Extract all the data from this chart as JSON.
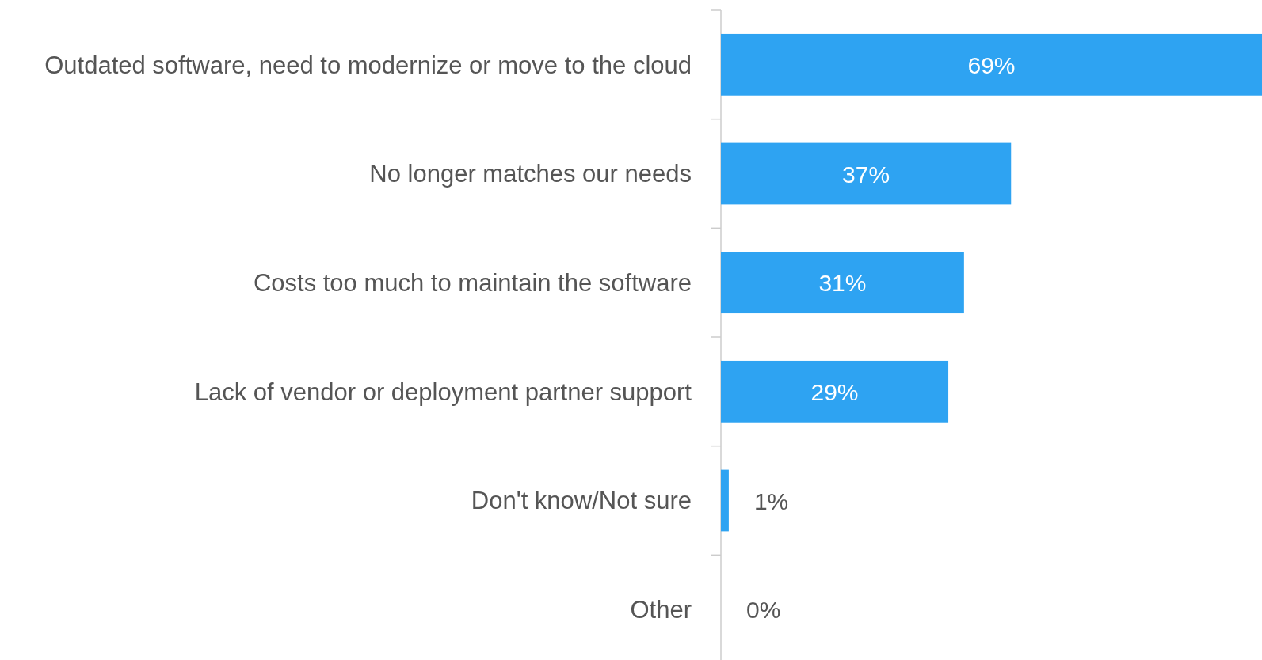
{
  "chart_data": {
    "type": "bar",
    "orientation": "horizontal",
    "categories": [
      "Outdated software, need to modernize or move to the cloud",
      "No longer matches our needs",
      "Costs too much to maintain the software",
      "Lack of vendor or deployment partner support",
      "Don't know/Not sure",
      "Other"
    ],
    "values": [
      69,
      37,
      31,
      29,
      1,
      0
    ],
    "color": "#2ea3f2",
    "data_labels": true,
    "value_labels": [
      "69%",
      "37%",
      "31%",
      "29%",
      "1%",
      "0%"
    ]
  }
}
